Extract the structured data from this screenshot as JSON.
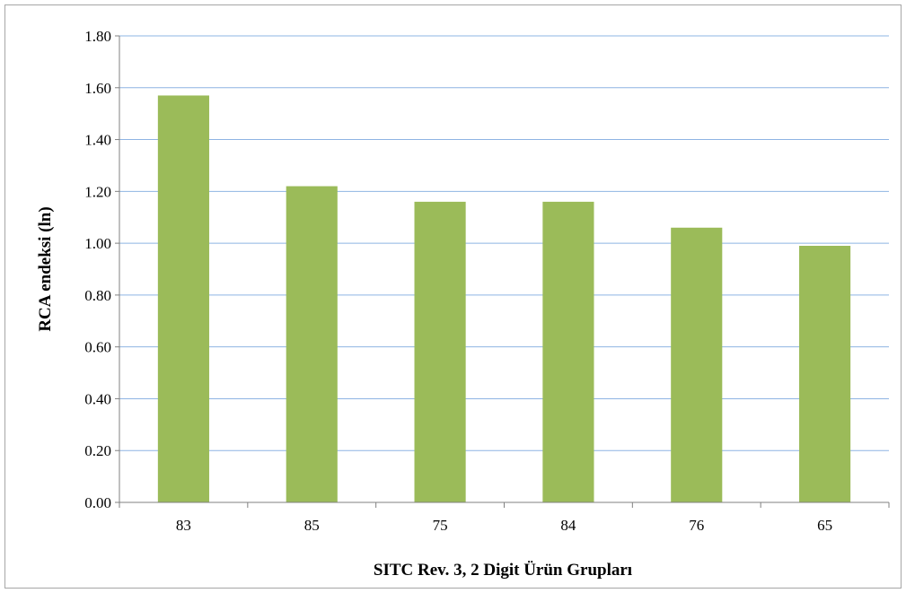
{
  "chart_data": {
    "type": "bar",
    "title": "",
    "xlabel": "SITC Rev. 3, 2 Digit Ürün Grupları",
    "ylabel": "RCA endeksi (ln)",
    "categories": [
      "83",
      "85",
      "75",
      "84",
      "76",
      "65"
    ],
    "values": [
      1.57,
      1.22,
      1.16,
      1.16,
      1.06,
      0.99
    ],
    "ylim": [
      0,
      1.8
    ],
    "yticks": [
      "0.00",
      "0.20",
      "0.40",
      "0.60",
      "0.80",
      "1.00",
      "1.20",
      "1.40",
      "1.60",
      "1.80"
    ],
    "grid": true,
    "legend": "none",
    "colors": {
      "bar": "#9bbb59",
      "grid": "#8eb4e3",
      "axis": "#808080",
      "border": "#a6a6a6"
    }
  }
}
